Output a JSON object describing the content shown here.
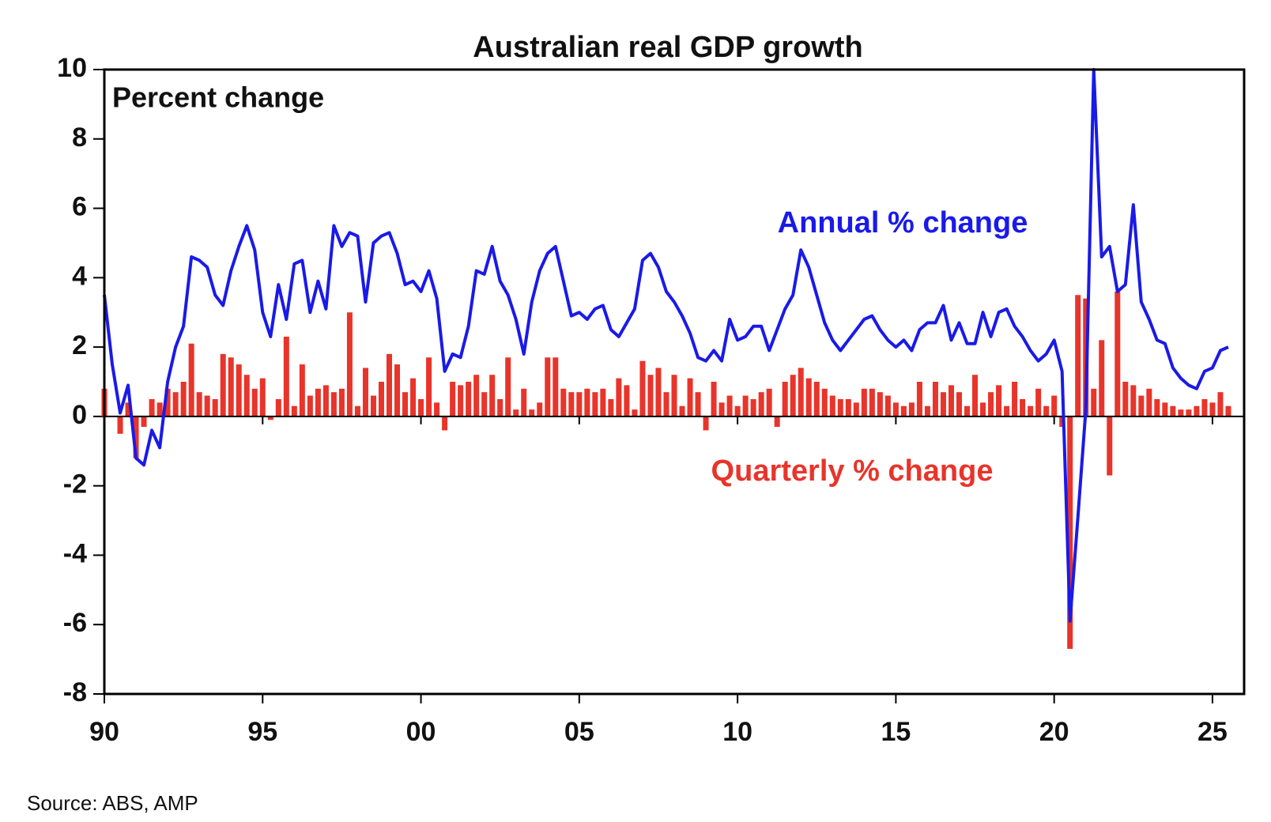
{
  "chart_data": {
    "type": "combo",
    "title": "Australian real GDP growth",
    "y_label": "Percent change",
    "source": "Source: ABS, AMP",
    "x": [
      1990,
      1990.25,
      1990.5,
      1990.75,
      1991,
      1991.25,
      1991.5,
      1991.75,
      1992,
      1992.25,
      1992.5,
      1992.75,
      1993,
      1993.25,
      1993.5,
      1993.75,
      1994,
      1994.25,
      1994.5,
      1994.75,
      1995,
      1995.25,
      1995.5,
      1995.75,
      1996,
      1996.25,
      1996.5,
      1996.75,
      1997,
      1997.25,
      1997.5,
      1997.75,
      1998,
      1998.25,
      1998.5,
      1998.75,
      1999,
      1999.25,
      1999.5,
      1999.75,
      2000,
      2000.25,
      2000.5,
      2000.75,
      2001,
      2001.25,
      2001.5,
      2001.75,
      2002,
      2002.25,
      2002.5,
      2002.75,
      2003,
      2003.25,
      2003.5,
      2003.75,
      2004,
      2004.25,
      2004.5,
      2004.75,
      2005,
      2005.25,
      2005.5,
      2005.75,
      2006,
      2006.25,
      2006.5,
      2006.75,
      2007,
      2007.25,
      2007.5,
      2007.75,
      2008,
      2008.25,
      2008.5,
      2008.75,
      2009,
      2009.25,
      2009.5,
      2009.75,
      2010,
      2010.25,
      2010.5,
      2010.75,
      2011,
      2011.25,
      2011.5,
      2011.75,
      2012,
      2012.25,
      2012.5,
      2012.75,
      2013,
      2013.25,
      2013.5,
      2013.75,
      2014,
      2014.25,
      2014.5,
      2014.75,
      2015,
      2015.25,
      2015.5,
      2015.75,
      2016,
      2016.25,
      2016.5,
      2016.75,
      2017,
      2017.25,
      2017.5,
      2017.75,
      2018,
      2018.25,
      2018.5,
      2018.75,
      2019,
      2019.25,
      2019.5,
      2019.75,
      2020,
      2020.25,
      2020.5,
      2020.75,
      2021,
      2021.25,
      2021.5,
      2021.75,
      2022,
      2022.25,
      2022.5,
      2022.75,
      2023,
      2023.25,
      2023.5,
      2023.75,
      2024,
      2024.25,
      2024.5,
      2024.75,
      2025,
      2025.25,
      2025.5
    ],
    "series": [
      {
        "name": "Annual % change",
        "type": "line",
        "color": "#1a1ae8",
        "values": [
          3.5,
          1.5,
          0.1,
          0.9,
          -1.2,
          -1.4,
          -0.4,
          -0.9,
          1.0,
          2.0,
          2.6,
          4.6,
          4.5,
          4.3,
          3.5,
          3.2,
          4.2,
          4.9,
          5.5,
          4.8,
          3.0,
          2.3,
          3.8,
          2.8,
          4.4,
          4.5,
          3.0,
          3.9,
          3.1,
          5.5,
          4.9,
          5.3,
          5.2,
          3.3,
          5.0,
          5.2,
          5.3,
          4.7,
          3.8,
          3.9,
          3.6,
          4.2,
          3.4,
          1.3,
          1.8,
          1.7,
          2.6,
          4.2,
          4.1,
          4.9,
          3.9,
          3.5,
          2.8,
          1.8,
          3.3,
          4.2,
          4.7,
          4.9,
          3.9,
          2.9,
          3.0,
          2.8,
          3.1,
          3.2,
          2.5,
          2.3,
          2.7,
          3.1,
          4.5,
          4.7,
          4.3,
          3.6,
          3.3,
          2.9,
          2.4,
          1.7,
          1.6,
          1.9,
          1.6,
          2.8,
          2.2,
          2.3,
          2.6,
          2.6,
          1.9,
          2.5,
          3.1,
          3.5,
          4.8,
          4.3,
          3.5,
          2.7,
          2.2,
          1.9,
          2.2,
          2.5,
          2.8,
          2.9,
          2.5,
          2.2,
          2.0,
          2.2,
          1.9,
          2.5,
          2.7,
          2.7,
          3.2,
          2.2,
          2.7,
          2.1,
          2.1,
          3.0,
          2.3,
          3.0,
          3.1,
          2.6,
          2.3,
          1.9,
          1.6,
          1.8,
          2.2,
          1.3,
          -5.9,
          -2.9,
          0.2,
          10.0,
          4.6,
          4.9,
          3.6,
          3.8,
          6.1,
          3.3,
          2.8,
          2.2,
          2.1,
          1.4,
          1.1,
          0.9,
          0.8,
          1.3,
          1.4,
          1.9,
          2.0
        ]
      },
      {
        "name": "Quarterly % change",
        "type": "bar",
        "color": "#e8342a",
        "values": [
          0.8,
          0.0,
          -0.5,
          0.4,
          -1.2,
          -0.3,
          0.5,
          0.4,
          0.8,
          0.7,
          1.0,
          2.1,
          0.7,
          0.6,
          0.5,
          1.8,
          1.7,
          1.5,
          1.2,
          0.8,
          1.1,
          -0.1,
          0.5,
          2.3,
          0.3,
          1.5,
          0.6,
          0.8,
          0.9,
          0.7,
          0.8,
          3.0,
          0.3,
          1.4,
          0.6,
          1.0,
          1.8,
          1.5,
          0.7,
          1.1,
          0.5,
          1.7,
          0.4,
          -0.4,
          1.0,
          0.9,
          1.0,
          1.2,
          0.7,
          1.2,
          0.5,
          1.7,
          0.2,
          0.8,
          0.2,
          0.4,
          1.7,
          1.7,
          0.8,
          0.7,
          0.7,
          0.8,
          0.7,
          0.8,
          0.5,
          1.1,
          0.9,
          0.2,
          1.6,
          1.2,
          1.4,
          0.7,
          1.2,
          0.3,
          1.1,
          0.7,
          -0.4,
          1.0,
          0.4,
          0.6,
          0.3,
          0.6,
          0.5,
          0.7,
          0.8,
          -0.3,
          1.0,
          1.2,
          1.4,
          1.1,
          1.0,
          0.8,
          0.6,
          0.5,
          0.5,
          0.4,
          0.8,
          0.8,
          0.7,
          0.6,
          0.4,
          0.3,
          0.4,
          1.0,
          0.3,
          1.0,
          0.7,
          0.9,
          0.7,
          0.3,
          1.2,
          0.4,
          0.7,
          0.9,
          0.3,
          1.0,
          0.5,
          0.3,
          0.8,
          0.3,
          0.6,
          -0.3,
          -6.7,
          3.5,
          3.4,
          0.8,
          2.2,
          -1.7,
          3.6,
          1.0,
          0.9,
          0.6,
          0.8,
          0.5,
          0.4,
          0.3,
          0.2,
          0.2,
          0.3,
          0.5,
          0.4,
          0.7,
          0.3
        ]
      }
    ],
    "xlim": [
      1990,
      2026
    ],
    "xticks": [
      {
        "value": 1990,
        "label": "90"
      },
      {
        "value": 1995,
        "label": "95"
      },
      {
        "value": 2000,
        "label": "00"
      },
      {
        "value": 2005,
        "label": "05"
      },
      {
        "value": 2010,
        "label": "10"
      },
      {
        "value": 2015,
        "label": "15"
      },
      {
        "value": 2020,
        "label": "20"
      },
      {
        "value": 2025,
        "label": "25"
      }
    ],
    "ylim": [
      -8,
      10
    ],
    "yticks": [
      -8,
      -6,
      -4,
      -2,
      0,
      2,
      4,
      6,
      8,
      10
    ],
    "grid": false
  }
}
